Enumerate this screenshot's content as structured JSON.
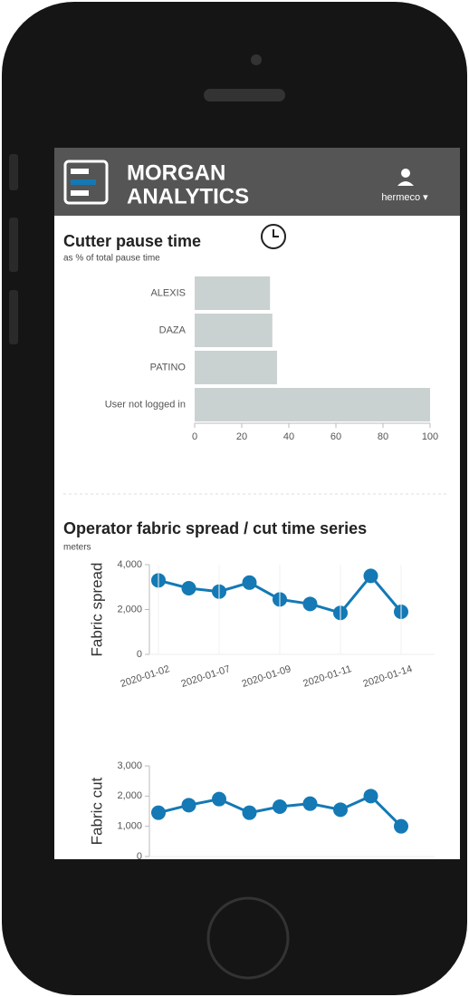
{
  "header": {
    "brand_line1": "MORGAN",
    "brand_line2": "ANALYTICS",
    "user": "hermeco ▾"
  },
  "chart_data": [
    {
      "type": "bar",
      "orientation": "horizontal",
      "title": "Cutter pause time",
      "subtitle": "as % of total pause time",
      "categories": [
        "ALEXIS",
        "DAZA",
        "PATINO",
        "User not logged in"
      ],
      "values": [
        32,
        33,
        35,
        100
      ],
      "color": "#c9d2d0",
      "xlim": [
        0,
        100
      ],
      "xticks": [
        0,
        20,
        40,
        60,
        80,
        100
      ]
    },
    {
      "type": "line",
      "title": "Operator fabric spread / cut time series",
      "subtitle": "meters",
      "y_label": "Fabric spread",
      "categories": [
        "2020-01-02",
        null,
        "2020-01-07",
        null,
        "2020-01-09",
        null,
        "2020-01-11",
        null,
        "2020-01-14"
      ],
      "values": [
        3300,
        2950,
        2800,
        3200,
        2450,
        2250,
        1850,
        3500,
        1900
      ],
      "color": "#1479b5",
      "ylim": [
        0,
        4000
      ],
      "yticks": [
        0,
        {
          "value": 2000,
          "label": "2,000"
        },
        {
          "value": 4000,
          "label": "4,000"
        }
      ]
    },
    {
      "type": "line",
      "y_label": "Fabric cut",
      "values": [
        1450,
        1700,
        1900,
        1450,
        1650,
        1750,
        1550,
        2000,
        1000
      ],
      "color": "#1479b5",
      "ylim": [
        0,
        3000
      ],
      "yticks": [
        0,
        {
          "value": 1000,
          "label": "1,000"
        },
        {
          "value": 2000,
          "label": "2,000"
        },
        {
          "value": 3000,
          "label": "3,000"
        }
      ]
    }
  ]
}
